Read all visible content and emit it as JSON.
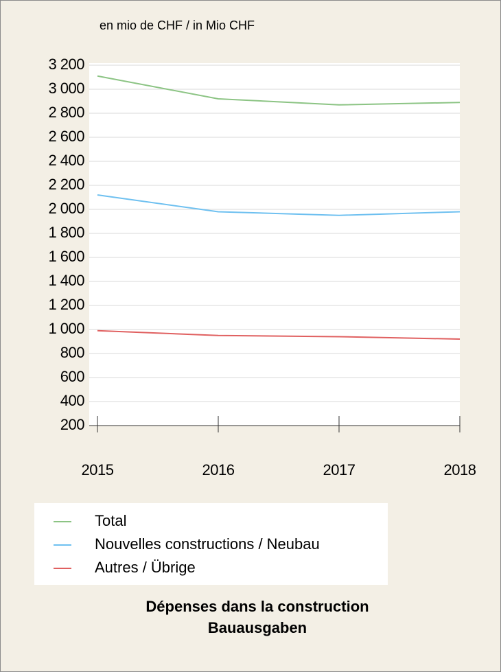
{
  "chart_data": {
    "type": "line",
    "unit_label": "en mio de CHF / in Mio CHF",
    "title": "Dépenses dans la construction",
    "subtitle": "Bauausgaben",
    "categories": [
      "2015",
      "2016",
      "2017",
      "2018"
    ],
    "series": [
      {
        "name": "Total",
        "color": "#8cc484",
        "values": [
          3110,
          2920,
          2870,
          2890
        ]
      },
      {
        "name": "Nouvelles constructions / Neubau",
        "color": "#6ec0f0",
        "values": [
          2120,
          1980,
          1950,
          1980
        ]
      },
      {
        "name": "Autres / Übrige",
        "color": "#e06060",
        "values": [
          990,
          950,
          940,
          920
        ]
      }
    ],
    "ylim": [
      200,
      3200
    ],
    "yticks": [
      200,
      400,
      600,
      800,
      {
        "value": 1000,
        "label": "1 000"
      },
      {
        "value": 1200,
        "label": "1 200"
      },
      {
        "value": 1400,
        "label": "1 400"
      },
      {
        "value": 1600,
        "label": "1 600"
      },
      {
        "value": 1800,
        "label": "1 800"
      },
      {
        "value": 2000,
        "label": "2 000"
      },
      {
        "value": 2200,
        "label": "2 200"
      },
      {
        "value": 2400,
        "label": "2 400"
      },
      {
        "value": 2600,
        "label": "2 600"
      },
      {
        "value": 2800,
        "label": "2 800"
      },
      {
        "value": 3000,
        "label": "3 000"
      },
      {
        "value": 3200,
        "label": "3 200"
      }
    ],
    "grid": true,
    "legend": "bottom"
  }
}
